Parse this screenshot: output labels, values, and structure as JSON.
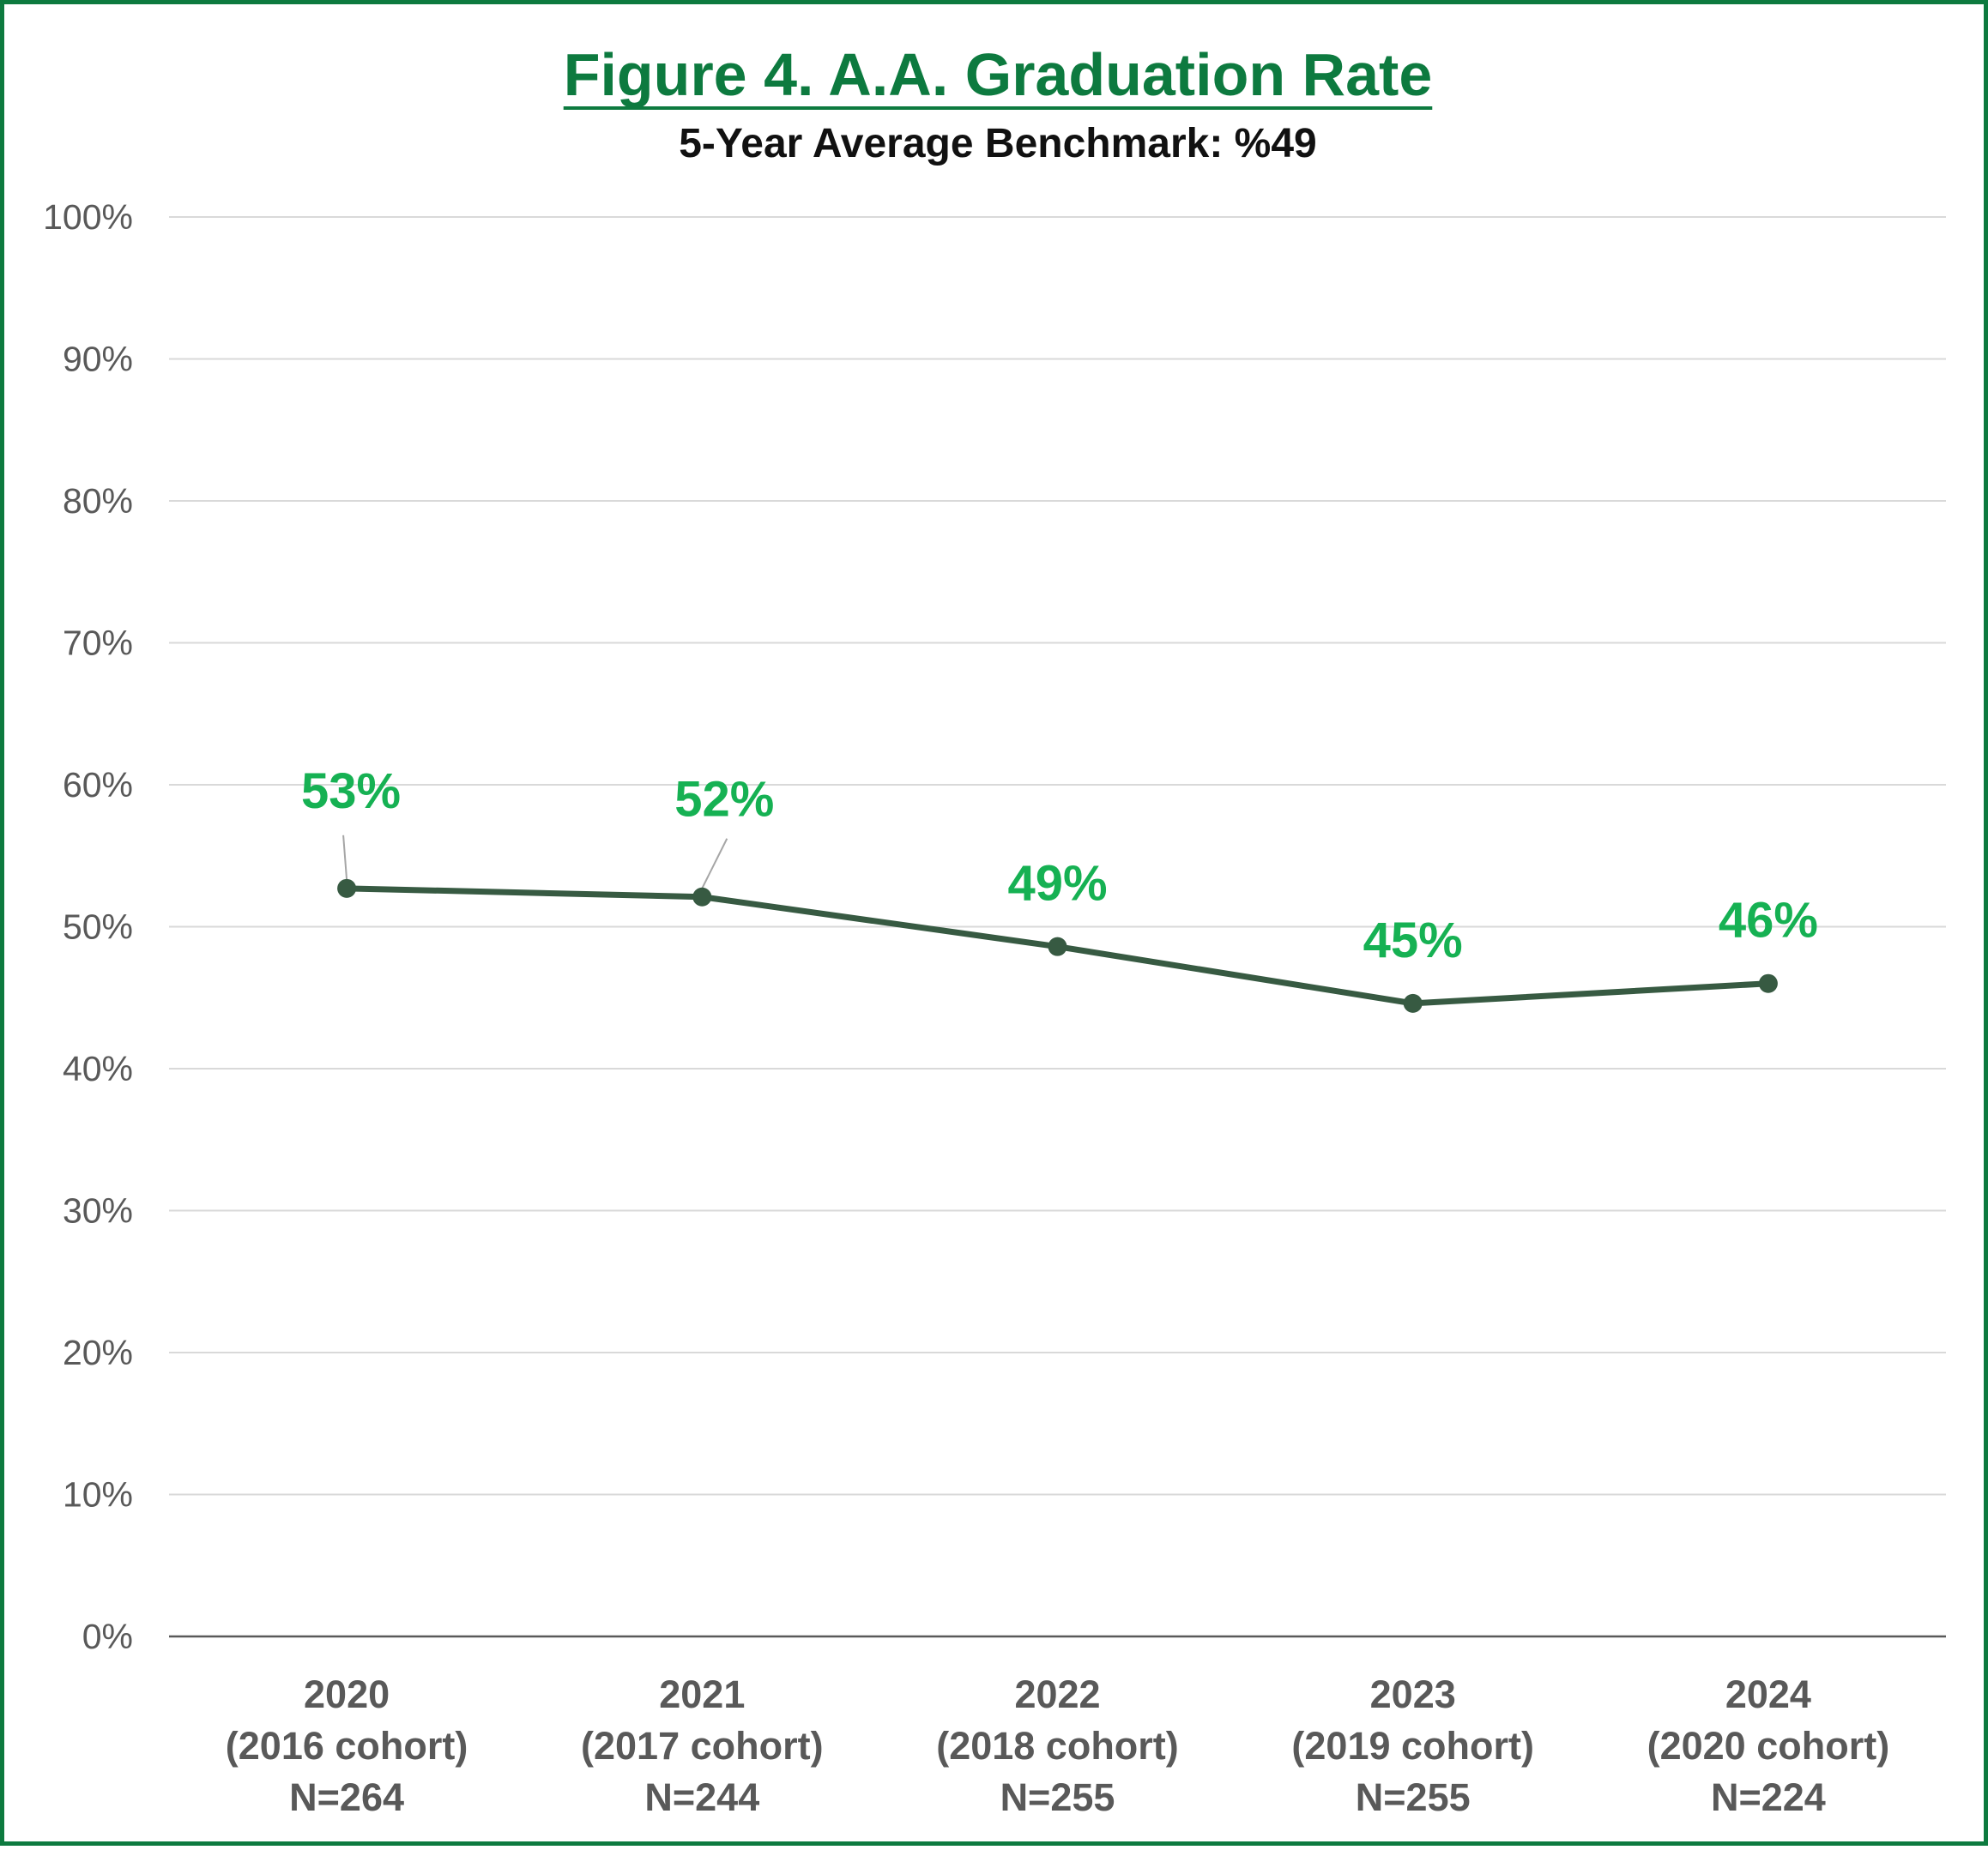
{
  "chart": {
    "title": "Figure 4. A.A. Graduation Rate",
    "subtitle": "5-Year Average Benchmark: %49"
  },
  "colors": {
    "frame": "#0d7a3f",
    "title": "#0d7a3f",
    "line": "#375a42",
    "data_label": "#16b153",
    "grid": "#d9d9d9",
    "axis": "#595959",
    "tick_text": "#595959"
  },
  "chart_data": {
    "type": "line",
    "title": "Figure 4. A.A. Graduation Rate",
    "subtitle": "5-Year Average Benchmark: %49",
    "xlabel": "",
    "ylabel": "",
    "categories": [
      [
        "2020",
        "(2016 cohort)",
        "N=264"
      ],
      [
        "2021",
        "(2017 cohort)",
        "N=244"
      ],
      [
        "2022",
        "(2018 cohort)",
        "N=255"
      ],
      [
        "2023",
        "(2019 cohort)",
        "N=255"
      ],
      [
        "2024",
        "(2020 cohort)",
        "N=224"
      ]
    ],
    "series": [
      {
        "values": [
          52.7,
          52.1,
          48.6,
          44.6,
          46.0
        ],
        "data_labels": [
          "53%",
          "52%",
          "49%",
          "45%",
          "46%"
        ]
      }
    ],
    "ylim": [
      0,
      100
    ],
    "yticks": [
      0,
      10,
      20,
      30,
      40,
      50,
      60,
      70,
      80,
      90,
      100
    ],
    "ytick_labels": [
      "0%",
      "10%",
      "20%",
      "30%",
      "40%",
      "50%",
      "60%",
      "70%",
      "80%",
      "90%",
      "100%"
    ],
    "grid": true,
    "legend": "none"
  }
}
